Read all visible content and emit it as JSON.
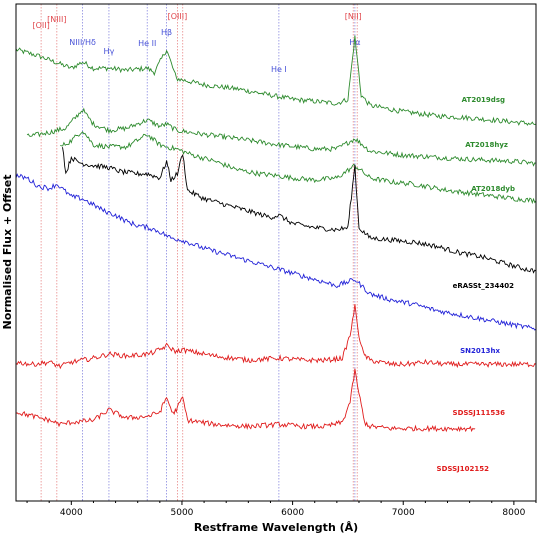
{
  "chart_data": {
    "type": "line",
    "xlabel": "Restframe Wavelength (Å)",
    "ylabel": "Normalised Flux + Offset",
    "xlim": [
      3500,
      8200
    ],
    "x_ticks": [
      4000,
      5000,
      6000,
      7000,
      8000
    ],
    "y_ticks_shown": false,
    "grid": false,
    "colors": {
      "red_line": "#e0474c",
      "blue_line": "#4a54d8",
      "ref_red": "#e88a8a",
      "ref_blue": "#8a8ae0"
    },
    "reference_lines": [
      {
        "label": "[OII]",
        "x": 3727,
        "color": "red"
      },
      {
        "label": "[NIII]",
        "x": 3869,
        "color": "red"
      },
      {
        "label": "NIII/Hδ",
        "x": 4102,
        "color": "blue"
      },
      {
        "label": "Hγ",
        "x": 4340,
        "color": "blue"
      },
      {
        "label": "He II",
        "x": 4686,
        "color": "blue"
      },
      {
        "label": "Hβ",
        "x": 4861,
        "color": "blue"
      },
      {
        "label": "[OIII]",
        "x": 4959,
        "color": "red"
      },
      {
        "label": "",
        "x": 5007,
        "color": "red"
      },
      {
        "label": "He I",
        "x": 5876,
        "color": "blue"
      },
      {
        "label": "[NII]",
        "x": 6548,
        "color": "red"
      },
      {
        "label": "Hα",
        "x": 6563,
        "color": "blue"
      },
      {
        "label": "",
        "x": 6584,
        "color": "red"
      }
    ],
    "series": [
      {
        "name": "AT2019dsg",
        "color": "#2e8b2e",
        "x": [
          3500,
          3700,
          3900,
          4000,
          4100,
          4200,
          4340,
          4500,
          4686,
          4750,
          4861,
          4950,
          5200,
          5500,
          5800,
          6000,
          6200,
          6400,
          6500,
          6563,
          6620,
          6700,
          7000,
          7300,
          7600,
          8000,
          8200
        ],
        "y": [
          10.9,
          10.75,
          10.55,
          10.45,
          10.6,
          10.45,
          10.45,
          10.4,
          10.45,
          10.35,
          10.9,
          10.2,
          10.05,
          9.95,
          9.8,
          9.7,
          9.65,
          9.6,
          9.7,
          11.2,
          9.8,
          9.55,
          9.4,
          9.3,
          9.25,
          9.15,
          9.1
        ]
      },
      {
        "name": "AT2018hyz",
        "color": "#2e8b2e",
        "x": [
          3600,
          3800,
          3950,
          4102,
          4200,
          4340,
          4500,
          4686,
          4800,
          4861,
          4950,
          5200,
          5500,
          5876,
          6200,
          6400,
          6563,
          6700,
          7000,
          7300,
          7600,
          8000,
          8200
        ],
        "y": [
          8.8,
          8.9,
          9.0,
          9.45,
          9.1,
          8.95,
          9.0,
          9.2,
          9.05,
          9.1,
          8.95,
          8.85,
          8.75,
          8.6,
          8.5,
          8.5,
          8.75,
          8.45,
          8.35,
          8.3,
          8.25,
          8.2,
          8.15
        ]
      },
      {
        "name": "AT2018dyb",
        "color": "#2e8b2e",
        "x": [
          3900,
          4000,
          4102,
          4200,
          4340,
          4500,
          4686,
          4800,
          4861,
          4950,
          5100,
          5300,
          5500,
          5700,
          5876,
          6000,
          6200,
          6400,
          6563,
          6700,
          6900,
          7100,
          7400,
          7700,
          8000,
          8200
        ],
        "y": [
          8.55,
          8.7,
          8.95,
          8.6,
          8.55,
          8.55,
          8.85,
          8.6,
          8.55,
          8.5,
          8.35,
          8.2,
          8.0,
          7.9,
          7.85,
          7.8,
          7.75,
          7.8,
          8.1,
          7.8,
          7.7,
          7.65,
          7.5,
          7.4,
          7.3,
          7.25
        ]
      },
      {
        "name": "eRASSt_234402",
        "color": "#000000",
        "x": [
          3920,
          3950,
          4000,
          4050,
          4100,
          4200,
          4340,
          4450,
          4600,
          4686,
          4800,
          4861,
          4900,
          4959,
          5007,
          5050,
          5200,
          5400,
          5600,
          5800,
          5876,
          6000,
          6200,
          6400,
          6500,
          6563,
          6600,
          6700,
          6900,
          7100,
          7300,
          7500,
          7700,
          7900,
          8100,
          8200
        ],
        "y": [
          8.6,
          7.9,
          8.3,
          8.2,
          8.15,
          8.1,
          8.05,
          7.95,
          7.9,
          7.9,
          7.8,
          8.2,
          7.75,
          7.9,
          8.4,
          7.5,
          7.3,
          7.15,
          7.0,
          6.85,
          6.9,
          6.7,
          6.6,
          6.55,
          6.6,
          8.1,
          6.6,
          6.35,
          6.3,
          6.25,
          6.15,
          6.0,
          5.9,
          5.75,
          5.6,
          5.55
        ]
      },
      {
        "name": "SN2013hx",
        "color": "#2323d8",
        "x": [
          3500,
          3600,
          3700,
          3800,
          3870,
          4000,
          4100,
          4200,
          4300,
          4400,
          4500,
          4600,
          4700,
          4800,
          4900,
          5000,
          5200,
          5400,
          5600,
          5800,
          6000,
          6200,
          6400,
          6563,
          6700,
          6900,
          7100,
          7300,
          7500,
          7700,
          7900,
          8100,
          8200
        ],
        "y": [
          7.85,
          7.8,
          7.6,
          7.55,
          7.65,
          7.35,
          7.3,
          7.15,
          7.0,
          6.9,
          6.75,
          6.65,
          6.6,
          6.5,
          6.35,
          6.3,
          6.1,
          5.95,
          5.8,
          5.65,
          5.5,
          5.35,
          5.2,
          5.35,
          5.0,
          4.85,
          4.75,
          4.6,
          4.5,
          4.4,
          4.3,
          4.2,
          4.15
        ]
      },
      {
        "name": "SDSSJ111536",
        "color": "#e01c1c",
        "x": [
          3500,
          3650,
          3800,
          3900,
          4000,
          4200,
          4340,
          4500,
          4700,
          4800,
          4861,
          4950,
          5000,
          5300,
          5600,
          5876,
          6100,
          6300,
          6450,
          6520,
          6563,
          6600,
          6640,
          6700,
          6900,
          7000,
          7200,
          7400,
          7600,
          7800,
          8000,
          8200
        ],
        "y": [
          3.35,
          3.3,
          3.35,
          3.25,
          3.35,
          3.45,
          3.55,
          3.5,
          3.55,
          3.65,
          3.75,
          3.6,
          3.65,
          3.5,
          3.4,
          3.45,
          3.4,
          3.4,
          3.45,
          4.0,
          4.7,
          4.0,
          3.55,
          3.4,
          3.3,
          3.3,
          3.35,
          3.3,
          3.3,
          3.3,
          3.3,
          3.3
        ]
      },
      {
        "name": "SDSSJ102152",
        "color": "#e01c1c",
        "x": [
          3500,
          3650,
          3800,
          3900,
          4000,
          4200,
          4340,
          4500,
          4700,
          4800,
          4861,
          4920,
          4959,
          5007,
          5050,
          5300,
          5600,
          5876,
          6100,
          6300,
          6450,
          6520,
          6563,
          6600,
          6650,
          6700,
          6900,
          7100,
          7300,
          7500,
          7650
        ],
        "y": [
          2.15,
          2.05,
          1.95,
          1.85,
          1.9,
          1.95,
          2.2,
          2.0,
          2.05,
          2.15,
          2.5,
          2.1,
          2.25,
          2.5,
          1.95,
          1.85,
          1.8,
          1.85,
          1.8,
          1.8,
          1.9,
          2.4,
          3.15,
          2.6,
          1.9,
          1.8,
          1.75,
          1.75,
          1.75,
          1.75,
          1.75
        ]
      }
    ]
  }
}
